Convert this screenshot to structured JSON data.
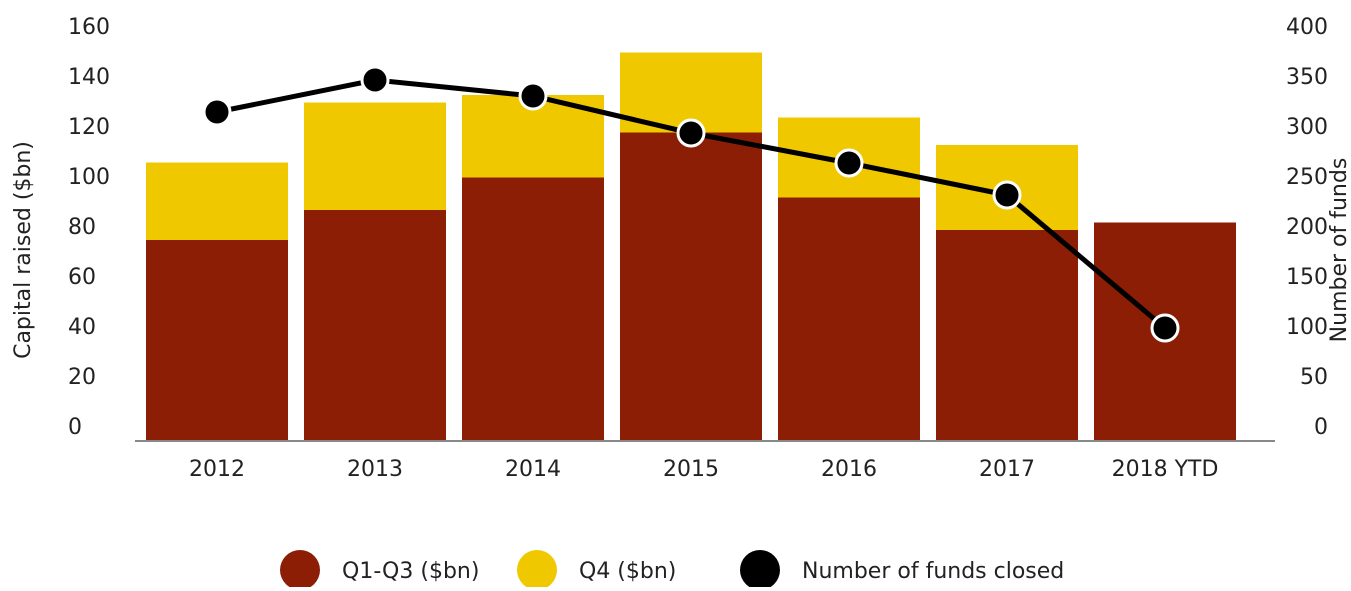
{
  "chart_data": {
    "type": "bar",
    "categories": [
      "2012",
      "2013",
      "2014",
      "2015",
      "2016",
      "2017",
      "2018 YTD"
    ],
    "series": [
      {
        "name": "Q1-Q3 ($bn)",
        "color": "#8b1e04",
        "values": [
          80,
          92,
          105,
          123,
          97,
          84,
          87
        ]
      },
      {
        "name": "Q4 ($bn)",
        "color": "#f0c800",
        "values": [
          31,
          43,
          33,
          32,
          32,
          34,
          null
        ]
      },
      {
        "name": "Number of funds closed",
        "color": "#000000",
        "axis": "y2",
        "type": "line",
        "values": [
          328,
          360,
          344,
          307,
          277,
          245,
          112
        ]
      }
    ],
    "ylabel": "Capital raised ($bn)",
    "y2label": "Number of funds",
    "ylim": [
      0,
      160
    ],
    "yticks": [
      0,
      20,
      40,
      60,
      80,
      100,
      120,
      140,
      160
    ],
    "y2lim": [
      0,
      400
    ],
    "y2ticks": [
      0,
      50,
      100,
      150,
      200,
      250,
      300,
      350,
      400
    ],
    "legend": "bottom"
  }
}
